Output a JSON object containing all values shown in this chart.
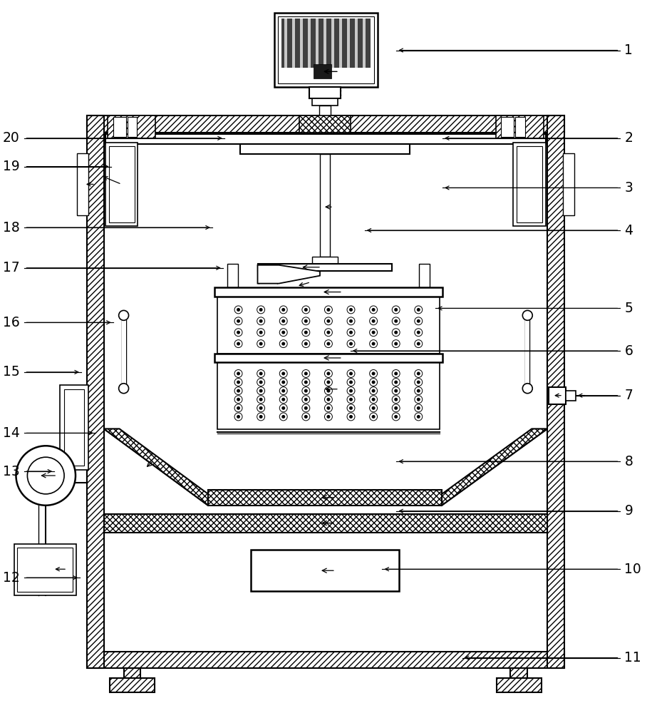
{
  "bg": "#ffffff",
  "figsize": [
    9.08,
    10.0
  ],
  "dpi": 100,
  "labels": [
    [
      1,
      555,
      68,
      870,
      68
    ],
    [
      2,
      620,
      192,
      870,
      192
    ],
    [
      3,
      620,
      262,
      870,
      262
    ],
    [
      4,
      510,
      322,
      870,
      322
    ],
    [
      5,
      610,
      432,
      870,
      432
    ],
    [
      6,
      490,
      492,
      870,
      492
    ],
    [
      7,
      808,
      555,
      870,
      555
    ],
    [
      8,
      555,
      648,
      870,
      648
    ],
    [
      9,
      555,
      718,
      870,
      718
    ],
    [
      10,
      535,
      800,
      870,
      800
    ],
    [
      11,
      648,
      925,
      870,
      925
    ],
    [
      12,
      108,
      812,
      30,
      812
    ],
    [
      13,
      72,
      662,
      30,
      662
    ],
    [
      14,
      130,
      608,
      30,
      608
    ],
    [
      15,
      110,
      522,
      30,
      522
    ],
    [
      16,
      155,
      452,
      30,
      452
    ],
    [
      17,
      310,
      375,
      30,
      375
    ],
    [
      18,
      295,
      318,
      30,
      318
    ],
    [
      19,
      152,
      232,
      30,
      232
    ],
    [
      20,
      312,
      192,
      30,
      192
    ]
  ]
}
